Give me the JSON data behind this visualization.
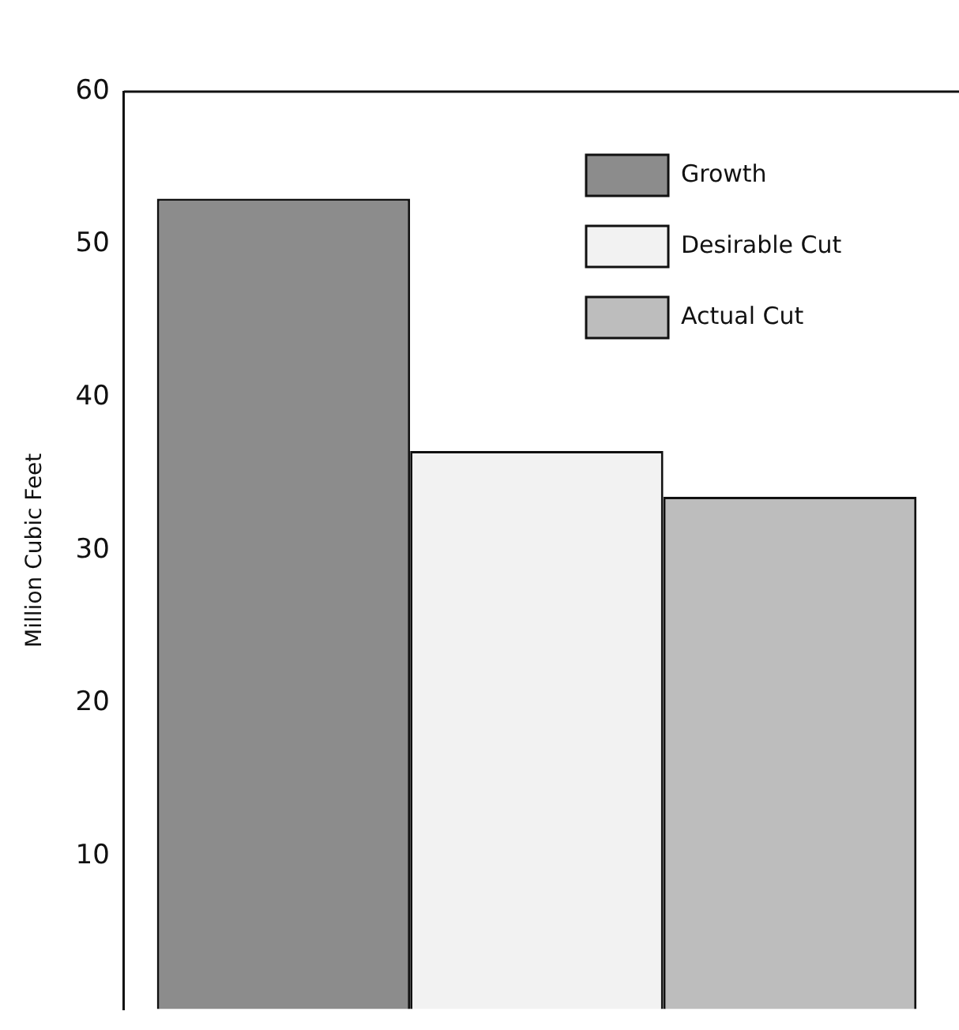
{
  "chart_data": {
    "type": "bar",
    "ylabel": "Million Cubic Feet",
    "categories": [
      null
    ],
    "series": [
      {
        "name": "Growth",
        "color": "#8c8c8c",
        "values": [
          53
        ]
      },
      {
        "name": "Desirable Cut",
        "color": "#f2f2f2",
        "values": [
          36.5
        ]
      },
      {
        "name": "Actual Cut",
        "color": "#bdbdbd",
        "values": [
          33.5
        ]
      }
    ],
    "ylim": [
      0,
      60
    ],
    "yticks": [
      10,
      20,
      30,
      40,
      50,
      60
    ],
    "tick_labels": "y",
    "legend": "top right",
    "grid": false
  }
}
